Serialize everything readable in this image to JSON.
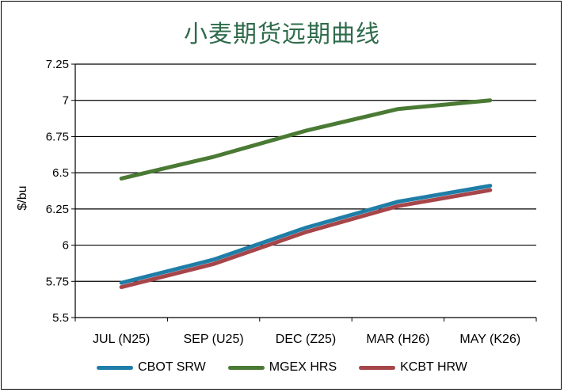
{
  "chart_data": {
    "type": "line",
    "title": "小麦期货远期曲线",
    "xlabel": "",
    "ylabel": "$/bu",
    "categories": [
      "JUL (N25)",
      "SEP (U25)",
      "DEC (Z25)",
      "MAR (H26)",
      "MAY (K26)"
    ],
    "ylim": [
      5.5,
      7.25
    ],
    "yticks": [
      "5.5",
      "5.75",
      "6",
      "6.25",
      "6.5",
      "6.75",
      "7",
      "7.25"
    ],
    "grid": true,
    "legend_position": "bottom",
    "series": [
      {
        "name": "CBOT SRW",
        "color": "#1f7ea8",
        "values": [
          5.74,
          5.9,
          6.12,
          6.3,
          6.41
        ]
      },
      {
        "name": "MGEX HRS",
        "color": "#4a7a34",
        "values": [
          6.46,
          6.61,
          6.79,
          6.94,
          7.0
        ]
      },
      {
        "name": "KCBT HRW",
        "color": "#a6464a",
        "values": [
          5.71,
          5.87,
          6.09,
          6.27,
          6.38
        ]
      }
    ]
  }
}
